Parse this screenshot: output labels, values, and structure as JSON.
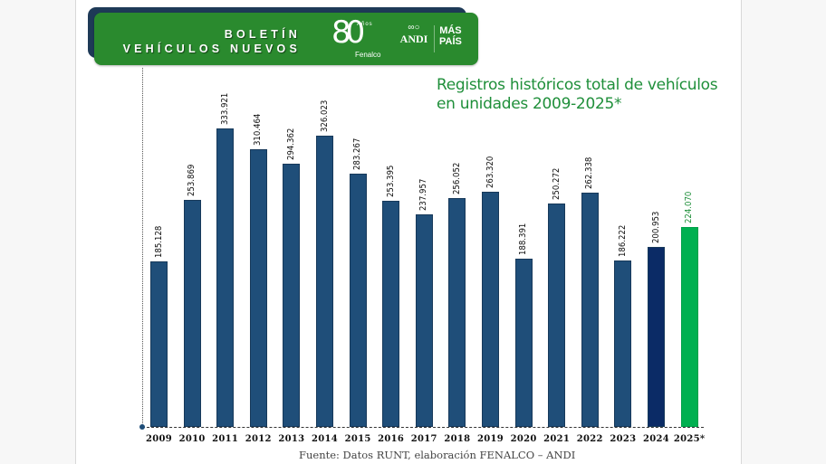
{
  "header": {
    "line1": "BOLETÍN",
    "line2": "VEHÍCULOS NUEVOS",
    "logos": {
      "fenalco_number": "80",
      "fenalco_anos": "Años",
      "fenalco_name": "Fenalco",
      "andi": "ANDI",
      "maspais_line1": "MÁS",
      "maspais_line2": "PAÍS"
    }
  },
  "colors": {
    "header_green": "#2a8a2e",
    "header_shadow": "#1e3a57",
    "bar_default": "#1f4e79",
    "bar_2024": "#0b2b66",
    "bar_2025": "#00b050",
    "label_2025": "#1f8f3a"
  },
  "chart_data": {
    "type": "bar",
    "title": "Registros históricos total de vehículos en unidades 2009-2025*",
    "title_line1": "Registros históricos total de vehículos",
    "title_line2": "en unidades 2009-2025*",
    "xlabel": "",
    "ylabel": "",
    "ylim": [
      0,
      340000
    ],
    "grid": false,
    "legend": "none",
    "categories": [
      "2009",
      "2010",
      "2011",
      "2012",
      "2013",
      "2014",
      "2015",
      "2016",
      "2017",
      "2018",
      "2019",
      "2020",
      "2021",
      "2022",
      "2023",
      "2024",
      "2025*"
    ],
    "values": [
      185128,
      253869,
      333921,
      310464,
      294362,
      326023,
      283267,
      253395,
      237957,
      256052,
      263320,
      188391,
      250272,
      262338,
      186222,
      200953,
      224070
    ],
    "value_labels": [
      "185.128",
      "253.869",
      "333.921",
      "310.464",
      "294.362",
      "326.023",
      "283.267",
      "253.395",
      "237.957",
      "256.052",
      "263.320",
      "188.391",
      "250.272",
      "262.338",
      "186.222",
      "200.953",
      "224.070"
    ]
  },
  "source": "Fuente: Datos RUNT, elaboración FENALCO – ANDI"
}
